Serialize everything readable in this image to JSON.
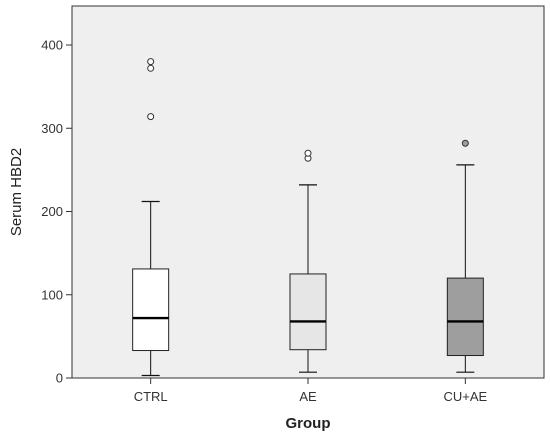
{
  "chart_data": {
    "type": "boxplot",
    "title": "",
    "xlabel": "Group",
    "ylabel": "Serum HBD2",
    "ylim": [
      0,
      400
    ],
    "yticks": [
      0,
      100,
      200,
      300,
      400
    ],
    "y_tick_labels": [
      "0",
      "100",
      "200",
      "300",
      "400"
    ],
    "grid": false,
    "plot_background": "#efefef",
    "categories": [
      "CTRL",
      "AE",
      "CU+AE"
    ],
    "boxes": [
      {
        "category": "CTRL",
        "whisker_low": 3,
        "q1": 33,
        "median": 72,
        "q3": 131,
        "whisker_high": 212,
        "outliers": [
          314,
          372,
          380
        ],
        "fill": "#ffffff"
      },
      {
        "category": "AE",
        "whisker_low": 7,
        "q1": 34,
        "median": 68,
        "q3": 125,
        "whisker_high": 232,
        "outliers": [
          264,
          270
        ],
        "fill": "#e6e6e6"
      },
      {
        "category": "CU+AE",
        "whisker_low": 7,
        "q1": 27,
        "median": 68,
        "q3": 120,
        "whisker_high": 256,
        "outliers": [
          282
        ],
        "fill": "#9e9e9e"
      }
    ]
  }
}
